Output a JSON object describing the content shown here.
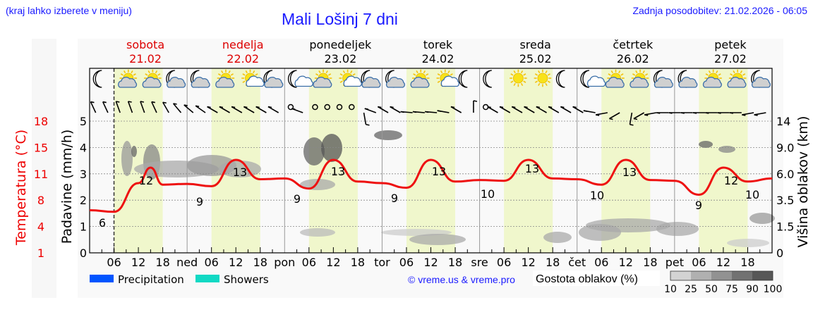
{
  "header": {
    "left_note": "(kraj lahko izberete v meniju)",
    "title": "Mali Lošinj 7 dni",
    "last_update": "Zadnja posodobitev: 21.02.2026 - 06:05"
  },
  "days": [
    {
      "name": "sobota",
      "date": "21.02",
      "weekend": true,
      "short": ""
    },
    {
      "name": "nedelja",
      "date": "22.02",
      "weekend": true,
      "short": "ned"
    },
    {
      "name": "ponedeljek",
      "date": "23.02",
      "weekend": false,
      "short": "pon"
    },
    {
      "name": "torek",
      "date": "24.02",
      "weekend": false,
      "short": "tor"
    },
    {
      "name": "sreda",
      "date": "25.02",
      "weekend": false,
      "short": "sre"
    },
    {
      "name": "četrtek",
      "date": "26.02",
      "weekend": false,
      "short": "čet"
    },
    {
      "name": "petek",
      "date": "27.02",
      "weekend": false,
      "short": "pet"
    }
  ],
  "hour_ticks": [
    "06",
    "12",
    "18"
  ],
  "weather_icons": [
    "moon",
    "sun-cloud",
    "sun-cloud",
    "moon-cloud",
    "moon-cloud",
    "sun-cloud",
    "sun-small-cloud",
    "moon-cloud",
    "moon-small-cloud",
    "sun-cloud",
    "sun-small-cloud",
    "moon-cloud",
    "moon-cloud",
    "sun-cloud",
    "sun-small-cloud",
    "moon",
    "moon",
    "sun",
    "sun",
    "moon",
    "moon-small-cloud",
    "sun-cloud",
    "sun-cloud",
    "moon-cloud",
    "moon-cloud",
    "sun-cloud",
    "sun-cloud",
    "moon-cloud"
  ],
  "axes": {
    "temp_label": "Temperatura (°C)",
    "temp_ticks": [
      "18",
      "15",
      "11",
      "8",
      "4",
      "1"
    ],
    "precip_label": "Padavine (mm/h)",
    "precip_ticks": [
      "5",
      "4",
      "3",
      "2",
      "1",
      "0"
    ],
    "cloud_label": "Višina oblakov (km)",
    "cloud_ticks": [
      "14",
      "9.0",
      "6.0",
      "3.5",
      "1.5",
      "0"
    ]
  },
  "legend": {
    "precipitation": {
      "label": "Precipitation",
      "color": "#0055ff"
    },
    "showers": {
      "label": "Showers",
      "color": "#11d9c4"
    },
    "credit": "© vreme.us & vreme.pro",
    "cloud_density_label": "Gostota oblakov (%)",
    "cloud_density_ticks": [
      "10",
      "25",
      "50",
      "75",
      "90",
      "100"
    ],
    "cloud_density_colors": [
      "#d3d3d3",
      "#b0b0b0",
      "#929292",
      "#727272",
      "#575757"
    ]
  },
  "colors": {
    "temp_line": "#ee1111",
    "day_band": "#f0f7cc",
    "night_band": "#f9f9f9",
    "weekend_text": "#dd0000"
  },
  "chart_data": {
    "type": "line",
    "title": "Mali Lošinj 7 dni",
    "xlabel": "",
    "ylabel": "Temperatura (°C)",
    "x": [
      "Sat 00",
      "Sat 06",
      "Sat 12",
      "Sat 15",
      "Sat 18",
      "Sun 00",
      "Sun 06",
      "Sun 12",
      "Sun 18",
      "Mon 00",
      "Mon 06",
      "Mon 12",
      "Mon 18",
      "Tue 00",
      "Tue 06",
      "Tue 12",
      "Tue 18",
      "Wed 00",
      "Wed 06",
      "Wed 12",
      "Wed 18",
      "Thu 00",
      "Thu 06",
      "Thu 12",
      "Thu 18",
      "Fri 00",
      "Fri 06",
      "Fri 12",
      "Fri 18",
      "Fri 24"
    ],
    "series": [
      {
        "name": "Temperatura (°C)",
        "values": [
          6.5,
          6.3,
          10,
          12,
          9.8,
          9.9,
          9.6,
          13,
          10.5,
          10.6,
          9.3,
          13,
          10.2,
          10,
          9.4,
          13,
          10.2,
          10.4,
          10.3,
          13,
          10.6,
          10.5,
          9.8,
          13,
          10.4,
          10.3,
          8.5,
          12,
          10.2,
          10.6
        ]
      }
    ],
    "annotations": {
      "temp_min_max_labels": [
        6,
        12,
        9,
        13,
        9,
        13,
        9,
        13,
        10,
        13,
        10,
        13,
        9,
        12,
        10
      ]
    },
    "ylim": [
      1,
      18
    ],
    "secondary_axes": {
      "precipitation_mm_h": [
        0,
        5
      ],
      "cloud_height_km_ticks": [
        0,
        1.5,
        3.5,
        6.0,
        9.0,
        14
      ]
    },
    "precipitation": "none shown",
    "grid": true,
    "legend_position": "bottom"
  }
}
